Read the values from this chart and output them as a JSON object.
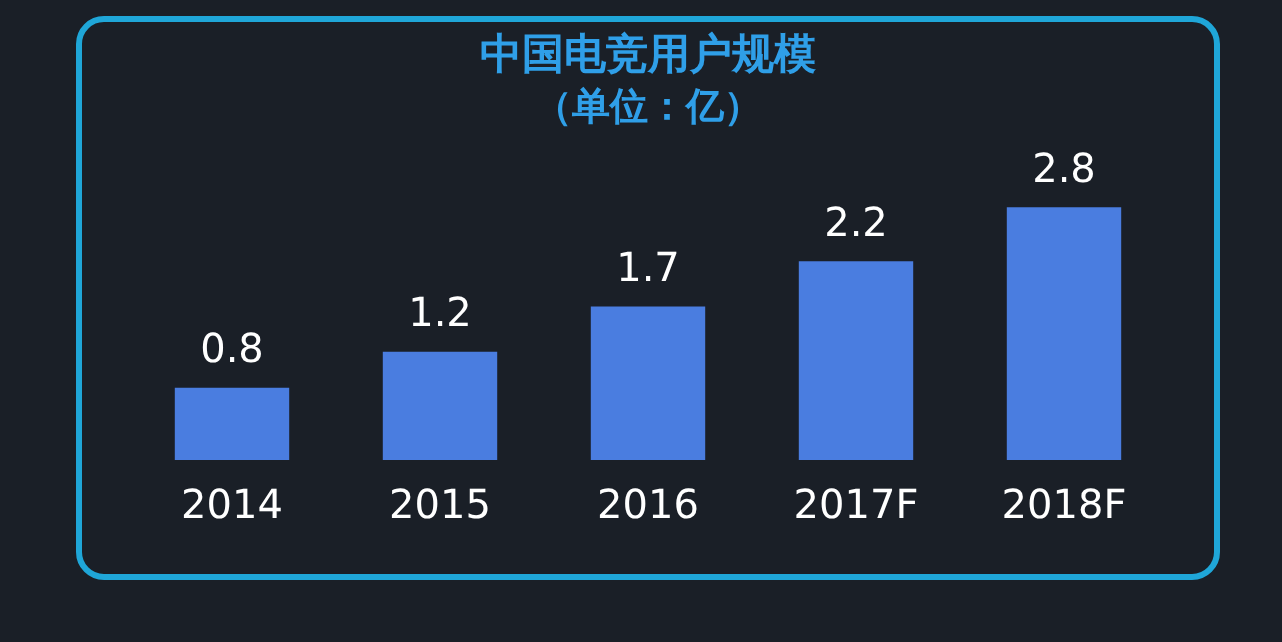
{
  "chart_data": {
    "type": "bar",
    "title": "中国电竞用户规模",
    "subtitle": "（单位：亿）",
    "categories": [
      "2014",
      "2015",
      "2016",
      "2017F",
      "2018F"
    ],
    "values": [
      0.8,
      1.2,
      1.7,
      2.2,
      2.8
    ],
    "color": "#4a7de0",
    "data_labels": true,
    "legend": false
  }
}
